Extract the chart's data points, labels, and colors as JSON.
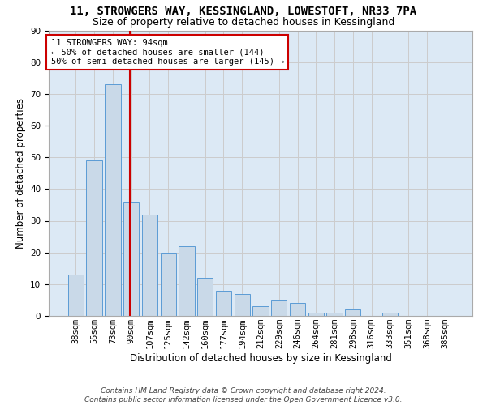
{
  "title_line1": "11, STROWGERS WAY, KESSINGLAND, LOWESTOFT, NR33 7PA",
  "title_line2": "Size of property relative to detached houses in Kessingland",
  "xlabel": "Distribution of detached houses by size in Kessingland",
  "ylabel": "Number of detached properties",
  "categories": [
    "38sqm",
    "55sqm",
    "73sqm",
    "90sqm",
    "107sqm",
    "125sqm",
    "142sqm",
    "160sqm",
    "177sqm",
    "194sqm",
    "212sqm",
    "229sqm",
    "246sqm",
    "264sqm",
    "281sqm",
    "298sqm",
    "316sqm",
    "333sqm",
    "351sqm",
    "368sqm",
    "385sqm"
  ],
  "values": [
    13,
    49,
    73,
    36,
    32,
    20,
    22,
    12,
    8,
    7,
    3,
    5,
    4,
    1,
    1,
    2,
    0,
    1,
    0,
    0,
    0
  ],
  "bar_color": "#c9d9e8",
  "bar_edge_color": "#5b9bd5",
  "vline_x": 3.0,
  "vline_color": "#cc0000",
  "annotation_text": "11 STROWGERS WAY: 94sqm\n← 50% of detached houses are smaller (144)\n50% of semi-detached houses are larger (145) →",
  "annotation_box_color": "#ffffff",
  "annotation_box_edge_color": "#cc0000",
  "ylim": [
    0,
    90
  ],
  "yticks": [
    0,
    10,
    20,
    30,
    40,
    50,
    60,
    70,
    80,
    90
  ],
  "grid_color": "#cccccc",
  "bg_color": "#dce9f5",
  "background_color": "#ffffff",
  "footer_line1": "Contains HM Land Registry data © Crown copyright and database right 2024.",
  "footer_line2": "Contains public sector information licensed under the Open Government Licence v3.0.",
  "title_fontsize": 10,
  "subtitle_fontsize": 9,
  "axis_label_fontsize": 8.5,
  "tick_fontsize": 7.5,
  "annotation_fontsize": 7.5,
  "footer_fontsize": 6.5
}
